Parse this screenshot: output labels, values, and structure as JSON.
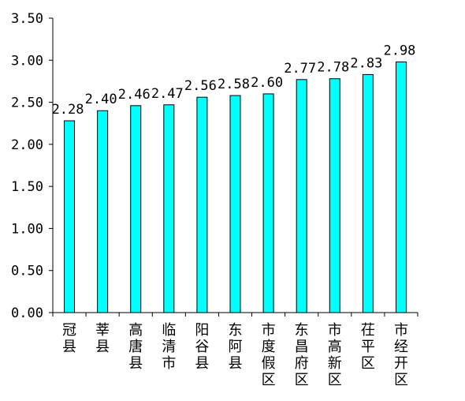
{
  "chart_data": {
    "type": "bar",
    "title": "",
    "xlabel": "",
    "ylabel": "",
    "categories": [
      "冠县",
      "莘县",
      "高唐县",
      "临清市",
      "阳谷县",
      "东阿县",
      "市度假区",
      "东昌府区",
      "市高新区",
      "茌平区",
      "市经开区"
    ],
    "values": [
      2.28,
      2.4,
      2.46,
      2.47,
      2.56,
      2.58,
      2.6,
      2.77,
      2.78,
      2.83,
      2.98
    ],
    "value_labels": [
      "2.28",
      "2.40",
      "2.46",
      "2.47",
      "2.56",
      "2.58",
      "2.60",
      "2.77",
      "2.78",
      "2.83",
      "2.98"
    ],
    "ylim": [
      0,
      3.5
    ],
    "yticks": [
      0,
      0.5,
      1.0,
      1.5,
      2.0,
      2.5,
      3.0,
      3.5
    ],
    "ytick_labels": [
      "0.00",
      "0.50",
      "1.00",
      "1.50",
      "2.00",
      "2.50",
      "3.00",
      "3.50"
    ],
    "grid": false,
    "legend": "none",
    "colors": {
      "bar_fill": "#00FFFF",
      "bar_stroke": "#000000",
      "axis": "#000000"
    }
  }
}
